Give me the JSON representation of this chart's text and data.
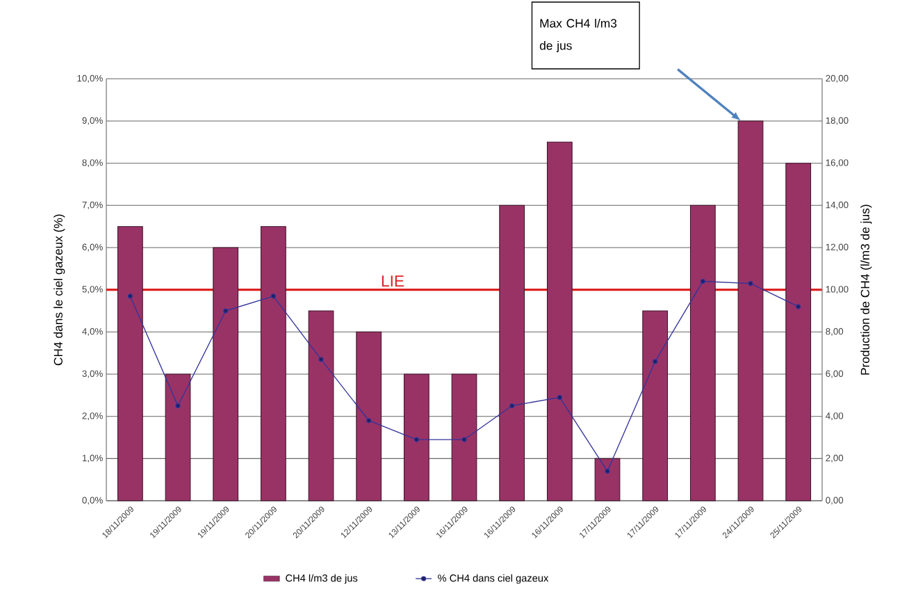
{
  "chart_data": {
    "type": "bar",
    "ylabel": "CH4 dans le ciel gazeux (%)",
    "y2label": "Production de CH4 (l/m3 de jus)",
    "categories": [
      "18/11/2009",
      "19/11/2009",
      "19/11/2009",
      "20/11/2009",
      "20/11/2009",
      "12/11/2009",
      "13/11/2009",
      "16/11/2009",
      "16/11/2009",
      "16/11/2009",
      "17/11/2009",
      "17/11/2009",
      "17/11/2009",
      "24/11/2009",
      "25/11/2009"
    ],
    "series": [
      {
        "name": "CH4 l/m3 de jus",
        "axis": "y2",
        "color": "#993366",
        "values": [
          13,
          6,
          12,
          13,
          9,
          8,
          6,
          6,
          14,
          17,
          2,
          9,
          14,
          18,
          16
        ]
      },
      {
        "name": "% CH4 dans ciel gazeux",
        "type": "line",
        "color": "#333399",
        "marker": "circle",
        "line_style": "solid",
        "values": [
          4.85,
          2.25,
          4.5,
          4.85,
          3.35,
          1.9,
          1.45,
          1.45,
          2.25,
          2.45,
          0.7,
          3.3,
          5.2,
          5.15,
          4.6
        ]
      }
    ],
    "ylim": [
      0,
      10
    ],
    "yticks": [
      {
        "value": 0,
        "label": "0,0%"
      },
      {
        "value": 1,
        "label": "1,0%"
      },
      {
        "value": 2,
        "label": "2,0%"
      },
      {
        "value": 3,
        "label": "3,0%"
      },
      {
        "value": 4,
        "label": "4,0%"
      },
      {
        "value": 5,
        "label": "5,0%"
      },
      {
        "value": 6,
        "label": "6,0%"
      },
      {
        "value": 7,
        "label": "7,0%"
      },
      {
        "value": 8,
        "label": "8,0%"
      },
      {
        "value": 9,
        "label": "9,0%"
      },
      {
        "value": 10,
        "label": "10,0%"
      }
    ],
    "y2lim": [
      0,
      20
    ],
    "y2ticks": [
      {
        "value": 0,
        "label": "0,00"
      },
      {
        "value": 2,
        "label": "2,00"
      },
      {
        "value": 4,
        "label": "4,00"
      },
      {
        "value": 6,
        "label": "6,00"
      },
      {
        "value": 8,
        "label": "8,00"
      },
      {
        "value": 10,
        "label": "10,00"
      },
      {
        "value": 12,
        "label": "12,00"
      },
      {
        "value": 14,
        "label": "14,00"
      },
      {
        "value": 16,
        "label": "16,00"
      },
      {
        "value": 18,
        "label": "18,00"
      },
      {
        "value": 20,
        "label": "20,00"
      }
    ],
    "ref_lines": [
      {
        "axis": "y",
        "value": 5,
        "label": "LIE",
        "color": "#dd2222"
      }
    ],
    "annotations": [
      "Max CH4 l/m3 de jus"
    ],
    "grid": "y",
    "legend": "bottom"
  }
}
